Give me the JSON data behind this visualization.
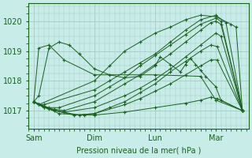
{
  "bg_color": "#c8ece8",
  "grid_color": "#a8cfc8",
  "line_color": "#1a6020",
  "marker_color": "#1a6020",
  "xlabel": "Pression niveau de la mer( hPa )",
  "xlabel_color": "#1a6020",
  "tick_color": "#1a6020",
  "yticks": [
    1017,
    1018,
    1019,
    1020
  ],
  "xtick_labels": [
    "Sam",
    "Dim",
    "Lun",
    "Mar"
  ],
  "xtick_positions": [
    0,
    48,
    96,
    144
  ],
  "xlim": [
    -4,
    170
  ],
  "ylim": [
    1016.4,
    1020.6
  ],
  "series": [
    {
      "x": [
        0,
        4,
        48,
        60,
        72,
        84,
        96,
        108,
        120,
        132,
        144,
        156,
        160,
        165
      ],
      "y": [
        1017.3,
        1017.2,
        1018.0,
        1018.5,
        1019.0,
        1019.3,
        1019.6,
        1019.8,
        1020.05,
        1020.2,
        1020.15,
        1019.9,
        1019.8,
        1017.0
      ]
    },
    {
      "x": [
        0,
        4,
        8,
        48,
        60,
        72,
        84,
        96,
        108,
        120,
        132,
        144,
        152,
        165
      ],
      "y": [
        1017.3,
        1017.2,
        1017.2,
        1017.7,
        1018.0,
        1018.3,
        1018.6,
        1018.9,
        1019.3,
        1019.7,
        1020.05,
        1020.2,
        1019.95,
        1017.0
      ]
    },
    {
      "x": [
        0,
        4,
        8,
        12,
        20,
        48,
        60,
        72,
        84,
        96,
        108,
        120,
        132,
        144,
        148,
        165
      ],
      "y": [
        1017.3,
        1017.2,
        1017.15,
        1017.1,
        1017.1,
        1017.5,
        1017.8,
        1018.1,
        1018.5,
        1018.85,
        1019.2,
        1019.55,
        1019.9,
        1020.1,
        1020.0,
        1017.0
      ]
    },
    {
      "x": [
        0,
        4,
        8,
        16,
        24,
        48,
        72,
        84,
        96,
        108,
        120,
        132,
        140,
        144,
        148,
        165
      ],
      "y": [
        1017.3,
        1017.2,
        1017.1,
        1017.05,
        1017.0,
        1017.3,
        1017.9,
        1018.2,
        1018.55,
        1018.9,
        1019.3,
        1019.7,
        1019.95,
        1020.0,
        1019.9,
        1017.0
      ]
    },
    {
      "x": [
        0,
        8,
        24,
        48,
        72,
        84,
        96,
        108,
        120,
        132,
        144,
        148,
        165
      ],
      "y": [
        1017.3,
        1017.1,
        1016.95,
        1017.1,
        1017.5,
        1017.75,
        1018.05,
        1018.4,
        1018.8,
        1019.2,
        1019.6,
        1019.5,
        1017.0
      ]
    },
    {
      "x": [
        0,
        12,
        32,
        48,
        60,
        72,
        84,
        96,
        108,
        120,
        132,
        140,
        145,
        165
      ],
      "y": [
        1017.3,
        1017.05,
        1016.85,
        1016.9,
        1017.1,
        1017.3,
        1017.6,
        1017.9,
        1018.3,
        1018.65,
        1019.0,
        1019.2,
        1019.15,
        1017.0
      ]
    },
    {
      "x": [
        0,
        16,
        36,
        48,
        72,
        84,
        96,
        108,
        120,
        132,
        140,
        145,
        165
      ],
      "y": [
        1017.3,
        1017.0,
        1016.85,
        1016.9,
        1017.2,
        1017.4,
        1017.65,
        1017.9,
        1018.2,
        1018.5,
        1018.7,
        1018.7,
        1017.0
      ]
    },
    {
      "x": [
        0,
        20,
        40,
        48,
        72,
        96,
        120,
        132,
        140,
        145,
        165
      ],
      "y": [
        1017.3,
        1016.9,
        1016.85,
        1016.85,
        1016.95,
        1017.1,
        1017.25,
        1017.35,
        1017.45,
        1017.4,
        1017.0
      ]
    },
    {
      "x": [
        0,
        4,
        12,
        24,
        48,
        96,
        132,
        144,
        165
      ],
      "y": [
        1017.3,
        1019.1,
        1019.2,
        1018.7,
        1018.2,
        1018.2,
        1018.15,
        1017.35,
        1017.0
      ]
    },
    {
      "x": [
        0,
        4,
        12,
        20,
        28,
        36,
        48,
        60,
        72,
        84,
        96,
        100,
        108,
        116,
        120,
        124,
        128,
        132,
        136,
        144,
        148,
        165
      ],
      "y": [
        1017.3,
        1017.5,
        1019.1,
        1019.3,
        1019.2,
        1018.9,
        1018.4,
        1018.2,
        1018.1,
        1018.15,
        1018.5,
        1018.8,
        1018.55,
        1018.3,
        1018.55,
        1018.75,
        1018.55,
        1018.35,
        1018.15,
        1017.8,
        1017.35,
        1017.0
      ]
    }
  ]
}
